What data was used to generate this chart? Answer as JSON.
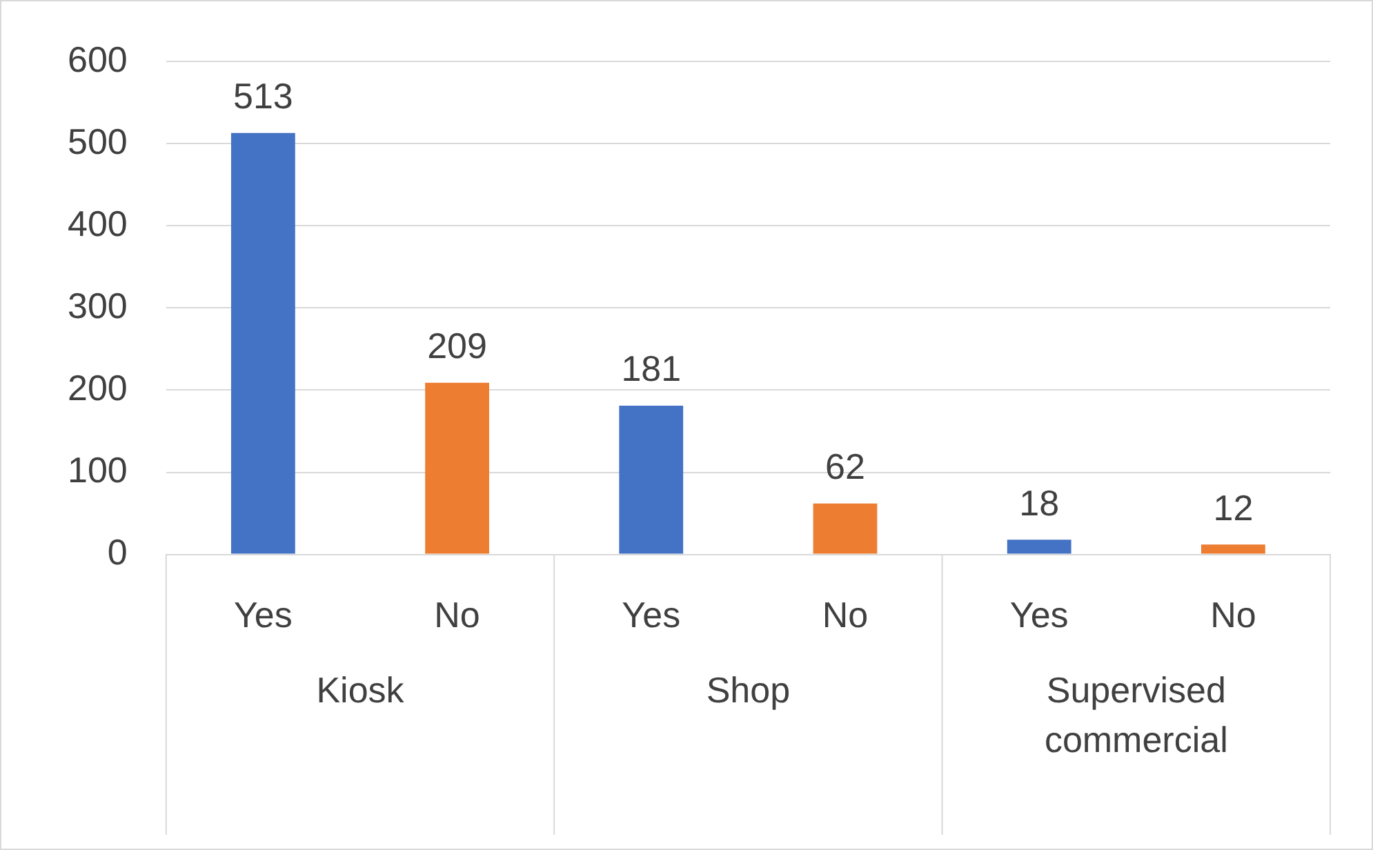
{
  "chart_data": {
    "type": "bar",
    "categories": [
      "Yes",
      "No",
      "Yes",
      "No",
      "Yes",
      "No"
    ],
    "values": [
      513,
      209,
      181,
      62,
      18,
      12
    ],
    "colors": [
      "#4472c4",
      "#ed7d31",
      "#4472c4",
      "#ed7d31",
      "#4472c4",
      "#ed7d31"
    ],
    "ylim": [
      0,
      600
    ],
    "yticks": [
      0,
      100,
      200,
      300,
      400,
      500,
      600
    ],
    "grid": "y",
    "data_labels": true,
    "legend": false,
    "annotations": [
      "Kiosk",
      "Shop",
      "Supervised commercial"
    ]
  }
}
